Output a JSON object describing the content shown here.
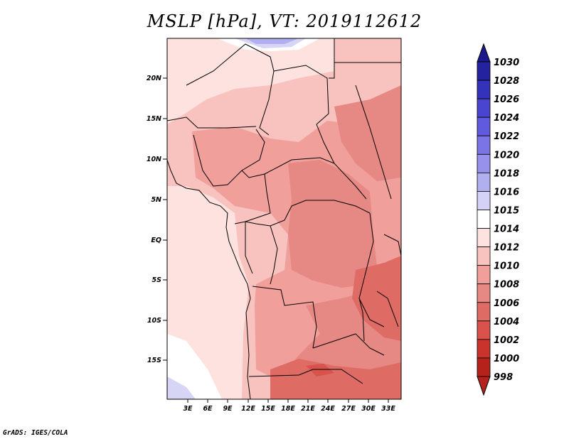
{
  "title": "MSLP [hPa], VT: 2019112612",
  "credit": "GrADS: IGES/COLA",
  "map": {
    "lat_ticks": [
      "20N",
      "15N",
      "10N",
      "5N",
      "EQ",
      "5S",
      "10S",
      "15S"
    ],
    "lon_ticks": [
      "3E",
      "6E",
      "9E",
      "12E",
      "15E",
      "18E",
      "21E",
      "24E",
      "27E",
      "30E",
      "33E"
    ],
    "colors": {
      "fill_1012": "#fde2df",
      "fill_1010": "#f8c3bf",
      "fill_1008": "#f09f9b",
      "fill_1006": "#e68884",
      "fill_1004": "#df6b65",
      "fill_1002": "#d9524c",
      "fill_1015": "#ffffff",
      "fill_1016": "#d7d5f5",
      "fill_1018": "#b2aff0"
    }
  },
  "colorbar": {
    "labels": [
      "1030",
      "1028",
      "1026",
      "1024",
      "1022",
      "1020",
      "1018",
      "1016",
      "1015",
      "1014",
      "1012",
      "1010",
      "1008",
      "1006",
      "1004",
      "1002",
      "1000",
      "998"
    ],
    "colors": [
      "#1c1a8a",
      "#24229e",
      "#3431ba",
      "#4a45d0",
      "#605ade",
      "#7a74e6",
      "#9791ec",
      "#b2aff0",
      "#d4d2f6",
      "#ffffff",
      "#fde2df",
      "#f8c3bf",
      "#f09f9b",
      "#e68884",
      "#df6b65",
      "#d9524c",
      "#c9332c",
      "#b5221c"
    ]
  }
}
